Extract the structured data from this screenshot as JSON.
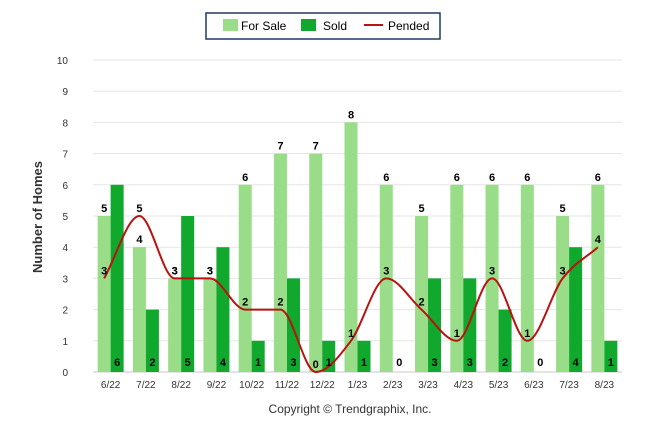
{
  "chart_data": {
    "type": "bar",
    "categories": [
      "6/22",
      "7/22",
      "8/22",
      "9/22",
      "10/22",
      "11/22",
      "12/22",
      "1/23",
      "2/23",
      "3/23",
      "4/23",
      "5/23",
      "6/23",
      "7/23",
      "8/23"
    ],
    "series": [
      {
        "name": "For Sale",
        "kind": "bar",
        "color": "#99dd88",
        "values": [
          5,
          4,
          3,
          3,
          6,
          7,
          7,
          8,
          6,
          5,
          6,
          6,
          6,
          5,
          6
        ]
      },
      {
        "name": "Sold",
        "kind": "bar",
        "color": "#11a82e",
        "values": [
          6,
          2,
          5,
          4,
          1,
          3,
          1,
          1,
          0,
          3,
          3,
          2,
          0,
          4,
          1
        ]
      },
      {
        "name": "Pended",
        "kind": "line",
        "color": "#bb1111",
        "values": [
          3,
          5,
          3,
          3,
          2,
          2,
          0,
          1,
          3,
          2,
          1,
          3,
          1,
          3,
          4
        ]
      }
    ],
    "ylabel": "Number of Homes",
    "ylim": [
      0,
      10
    ],
    "yticks": [
      0,
      1,
      2,
      3,
      4,
      5,
      6,
      7,
      8,
      9,
      10
    ],
    "grid": true,
    "legend_position": "top-center"
  },
  "credit": "Copyright © Trendgraphix, Inc."
}
